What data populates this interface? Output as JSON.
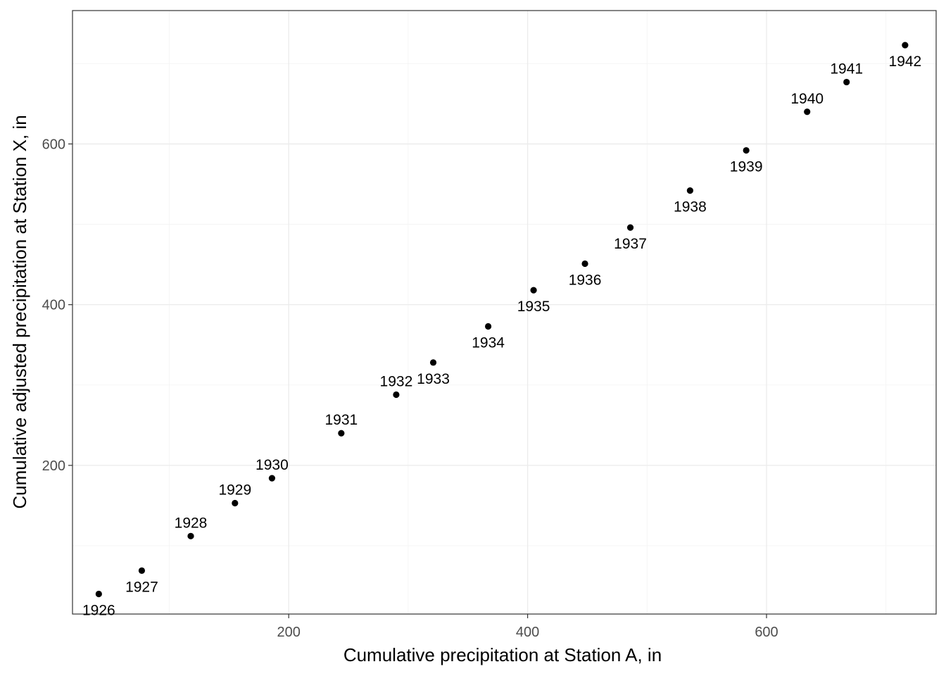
{
  "chart_data": {
    "type": "scatter",
    "title": "",
    "xlabel": "Cumulative precipitation at Station A, in",
    "ylabel": "Cumulative adjusted precipitation at Station X, in",
    "xlim": [
      19,
      742
    ],
    "ylim": [
      15,
      766
    ],
    "x_ticks": [
      200,
      400,
      600
    ],
    "y_ticks": [
      200,
      400,
      600
    ],
    "x_minor": [
      100,
      300,
      500,
      700
    ],
    "y_minor": [
      100,
      300,
      500,
      700
    ],
    "grid": true,
    "point_color": "#000000",
    "points": [
      {
        "label": "1926",
        "x": 41,
        "y": 40,
        "pos": "below"
      },
      {
        "label": "1927",
        "x": 77,
        "y": 69,
        "pos": "below"
      },
      {
        "label": "1928",
        "x": 118,
        "y": 112,
        "pos": "above"
      },
      {
        "label": "1929",
        "x": 155,
        "y": 153,
        "pos": "above"
      },
      {
        "label": "1930",
        "x": 186,
        "y": 184,
        "pos": "above"
      },
      {
        "label": "1931",
        "x": 244,
        "y": 240,
        "pos": "above"
      },
      {
        "label": "1932",
        "x": 290,
        "y": 288,
        "pos": "above"
      },
      {
        "label": "1933",
        "x": 321,
        "y": 328,
        "pos": "below"
      },
      {
        "label": "1934",
        "x": 367,
        "y": 373,
        "pos": "below"
      },
      {
        "label": "1935",
        "x": 405,
        "y": 418,
        "pos": "below"
      },
      {
        "label": "1936",
        "x": 448,
        "y": 451,
        "pos": "below"
      },
      {
        "label": "1937",
        "x": 486,
        "y": 496,
        "pos": "below"
      },
      {
        "label": "1938",
        "x": 536,
        "y": 542,
        "pos": "below"
      },
      {
        "label": "1939",
        "x": 583,
        "y": 592,
        "pos": "below"
      },
      {
        "label": "1940",
        "x": 634,
        "y": 640,
        "pos": "above"
      },
      {
        "label": "1941",
        "x": 667,
        "y": 677,
        "pos": "above"
      },
      {
        "label": "1942",
        "x": 716,
        "y": 723,
        "pos": "below"
      }
    ]
  }
}
